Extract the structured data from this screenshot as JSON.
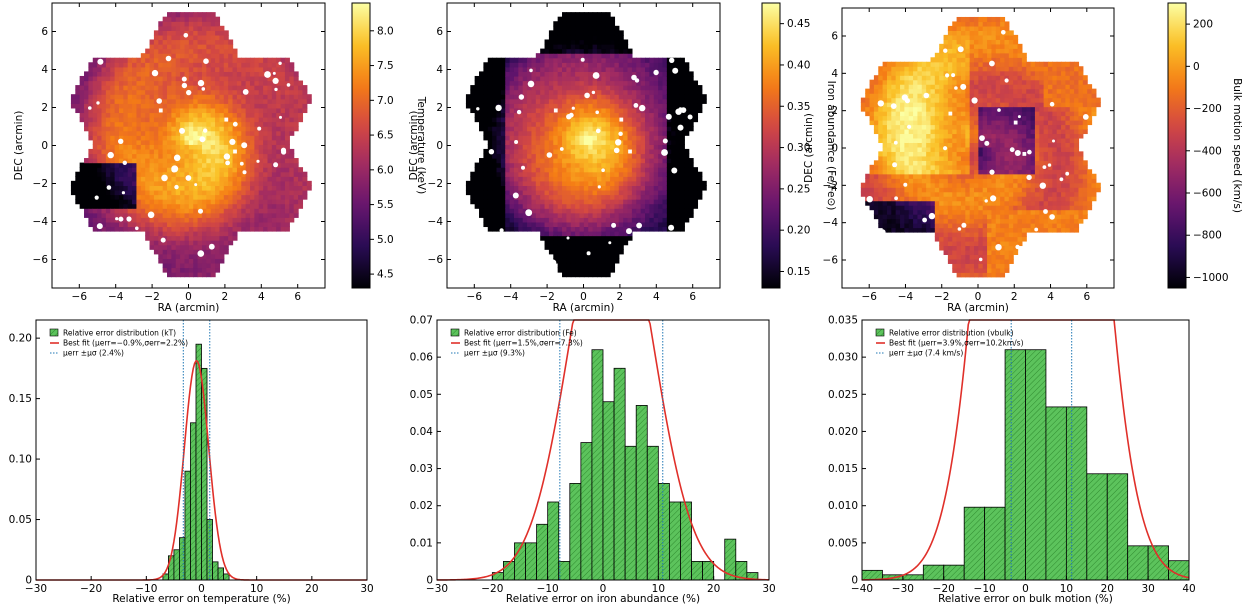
{
  "colors": {
    "hist_fill": "#5cc35c",
    "hist_hatch": "#2f8a2f",
    "fit_line": "#e0302a",
    "err_line": "#1f77b4",
    "map_bg": "#ffffff"
  },
  "chart_data": [
    {
      "id": "temp-map",
      "type": "heatmap",
      "xlabel": "RA (arcmin)",
      "ylabel": "DEC (arcmin)",
      "xticks": [
        -6,
        -4,
        -2,
        0,
        2,
        4,
        6
      ],
      "yticks": [
        -6,
        -4,
        -2,
        0,
        2,
        4,
        6
      ],
      "xlim": [
        -7.5,
        7.5
      ],
      "ylim": [
        -7.5,
        7.5
      ],
      "colorbar": {
        "label": "Temperature (keV)",
        "cmap": "inferno",
        "range": [
          4.3,
          8.4
        ],
        "ticks": [
          "4.5",
          "5.0",
          "5.5",
          "6.0",
          "6.5",
          "7.0",
          "7.5",
          "8.0"
        ],
        "tick_values": [
          4.5,
          5.0,
          5.5,
          6.0,
          6.5,
          7.0,
          7.5,
          8.0
        ]
      }
    },
    {
      "id": "fe-map",
      "type": "heatmap",
      "xlabel": "RA (arcmin)",
      "ylabel": "DEC (arcmin)",
      "xticks": [
        -6,
        -4,
        -2,
        0,
        2,
        4,
        6
      ],
      "yticks": [
        -6,
        -4,
        -2,
        0,
        2,
        4,
        6
      ],
      "xlim": [
        -7.5,
        7.5
      ],
      "ylim": [
        -7.5,
        7.5
      ],
      "colorbar": {
        "label": "Iron abundance (Fe/Fe⊙)",
        "cmap": "inferno",
        "range": [
          0.13,
          0.475
        ],
        "ticks": [
          "0.15",
          "0.20",
          "0.25",
          "0.30",
          "0.35",
          "0.40",
          "0.45"
        ],
        "tick_values": [
          0.15,
          0.2,
          0.25,
          0.3,
          0.35,
          0.4,
          0.45
        ]
      }
    },
    {
      "id": "vel-map",
      "type": "heatmap",
      "xlabel": "RA (arcmin)",
      "ylabel": "DEC (arcmin)",
      "xticks": [
        -6,
        -4,
        -2,
        0,
        2,
        4,
        6
      ],
      "yticks": [
        -6,
        -4,
        -2,
        0,
        2,
        4,
        6
      ],
      "xlim": [
        -7.5,
        7.5
      ],
      "ylim": [
        -7.5,
        7.5
      ],
      "colorbar": {
        "label": "Bulk motion speed (km/s)",
        "cmap": "inferno",
        "range": [
          -1050,
          300
        ],
        "ticks": [
          "−1000",
          "−800",
          "−600",
          "−400",
          "−200",
          "0",
          "200"
        ],
        "tick_values": [
          -1000,
          -800,
          -600,
          -400,
          -200,
          0,
          200
        ]
      }
    },
    {
      "id": "temp-hist",
      "type": "bar",
      "xlabel": "Relative error on temperature (%)",
      "ylabel": "",
      "xlim": [
        -30,
        30
      ],
      "ylim": [
        0,
        0.215
      ],
      "xticks": [
        -30,
        -20,
        -10,
        0,
        10,
        20,
        30
      ],
      "yticks": [
        0,
        0.05,
        0.1,
        0.15,
        0.2
      ],
      "ytick_labels": [
        "0",
        "0.05",
        "0.10",
        "0.15",
        "0.20"
      ],
      "bins": [
        {
          "x0": -7,
          "x1": -6,
          "y": 0.005
        },
        {
          "x0": -6,
          "x1": -5,
          "y": 0.02
        },
        {
          "x0": -5,
          "x1": -4,
          "y": 0.025
        },
        {
          "x0": -4,
          "x1": -3,
          "y": 0.035
        },
        {
          "x0": -3,
          "x1": -2,
          "y": 0.09
        },
        {
          "x0": -2,
          "x1": -1,
          "y": 0.13
        },
        {
          "x0": -1,
          "x1": 0,
          "y": 0.195
        },
        {
          "x0": 0,
          "x1": 1,
          "y": 0.175
        },
        {
          "x0": 1,
          "x1": 2,
          "y": 0.05
        },
        {
          "x0": 2,
          "x1": 3,
          "y": 0.015
        },
        {
          "x0": 3,
          "x1": 4,
          "y": 0.01
        },
        {
          "x0": 4,
          "x1": 5,
          "y": 0.005
        }
      ],
      "fit": {
        "mu": -0.9,
        "sigma": 2.2,
        "area": 1.0
      },
      "vlines": [
        -3.3,
        1.5
      ],
      "legend": {
        "hist": "Relative error distribution (kT)",
        "fit": "Best fit (μerr=−0.9%,σerr=2.2%)",
        "vline": "μerr ±μσ (2.4%)"
      }
    },
    {
      "id": "fe-hist",
      "type": "bar",
      "xlabel": "Relative error on iron abundance (%)",
      "ylabel": "",
      "xlim": [
        -30,
        30
      ],
      "ylim": [
        0,
        0.07
      ],
      "xticks": [
        -30,
        -20,
        -10,
        0,
        10,
        20,
        30
      ],
      "yticks": [
        0,
        0.01,
        0.02,
        0.03,
        0.04,
        0.05,
        0.06,
        0.07
      ],
      "ytick_labels": [
        "0",
        "0.01",
        "0.02",
        "0.03",
        "0.04",
        "0.05",
        "0.06",
        "0.07"
      ],
      "bins": [
        {
          "x0": -20,
          "x1": -18,
          "y": 0.002
        },
        {
          "x0": -18,
          "x1": -16,
          "y": 0.005
        },
        {
          "x0": -16,
          "x1": -14,
          "y": 0.01
        },
        {
          "x0": -14,
          "x1": -12,
          "y": 0.01
        },
        {
          "x0": -12,
          "x1": -10,
          "y": 0.015
        },
        {
          "x0": -10,
          "x1": -8,
          "y": 0.021
        },
        {
          "x0": -8,
          "x1": -6,
          "y": 0.005
        },
        {
          "x0": -6,
          "x1": -4,
          "y": 0.026
        },
        {
          "x0": -4,
          "x1": -2,
          "y": 0.037
        },
        {
          "x0": -2,
          "x1": 0,
          "y": 0.062
        },
        {
          "x0": 0,
          "x1": 2,
          "y": 0.048
        },
        {
          "x0": 2,
          "x1": 4,
          "y": 0.057
        },
        {
          "x0": 4,
          "x1": 6,
          "y": 0.036
        },
        {
          "x0": 6,
          "x1": 8,
          "y": 0.047
        },
        {
          "x0": 8,
          "x1": 10,
          "y": 0.036
        },
        {
          "x0": 10,
          "x1": 12,
          "y": 0.026
        },
        {
          "x0": 12,
          "x1": 14,
          "y": 0.021
        },
        {
          "x0": 14,
          "x1": 16,
          "y": 0.021
        },
        {
          "x0": 16,
          "x1": 18,
          "y": 0.005
        },
        {
          "x0": 18,
          "x1": 20,
          "y": 0.005
        },
        {
          "x0": 20,
          "x1": 22,
          "y": 0.0
        },
        {
          "x0": 22,
          "x1": 24,
          "y": 0.011
        },
        {
          "x0": 24,
          "x1": 26,
          "y": 0.005
        },
        {
          "x0": 26,
          "x1": 28,
          "y": 0.002
        }
      ],
      "fit": {
        "mu": 1.5,
        "sigma": 7.3,
        "area": 1.0
      },
      "vlines": [
        -7.8,
        10.8
      ],
      "legend": {
        "hist": "Relative error distribution (Fe)",
        "fit": "Best fit (μerr=1.5%,σerr=7.3%)",
        "vline": "μerr ±μσ (9.3%)"
      }
    },
    {
      "id": "vel-hist",
      "type": "bar",
      "xlabel": "Relative error on bulk motion (%)",
      "ylabel": "",
      "xlim": [
        -40,
        40
      ],
      "ylim": [
        0,
        0.035
      ],
      "xticks": [
        -40,
        -30,
        -20,
        -10,
        0,
        10,
        20,
        30,
        40
      ],
      "yticks": [
        0,
        0.005,
        0.01,
        0.015,
        0.02,
        0.025,
        0.03,
        0.035
      ],
      "ytick_labels": [
        "0",
        "0.005",
        "0.010",
        "0.015",
        "0.020",
        "0.025",
        "0.030",
        "0.035"
      ],
      "bins": [
        {
          "x0": -40,
          "x1": -35,
          "y": 0.0013
        },
        {
          "x0": -35,
          "x1": -30,
          "y": 0.0007
        },
        {
          "x0": -30,
          "x1": -25,
          "y": 0.0007
        },
        {
          "x0": -25,
          "x1": -20,
          "y": 0.002
        },
        {
          "x0": -20,
          "x1": -15,
          "y": 0.002
        },
        {
          "x0": -15,
          "x1": -10,
          "y": 0.0098
        },
        {
          "x0": -10,
          "x1": -5,
          "y": 0.0098
        },
        {
          "x0": -5,
          "x1": 0,
          "y": 0.031
        },
        {
          "x0": 0,
          "x1": 5,
          "y": 0.031
        },
        {
          "x0": 5,
          "x1": 10,
          "y": 0.0233
        },
        {
          "x0": 10,
          "x1": 15,
          "y": 0.0233
        },
        {
          "x0": 15,
          "x1": 20,
          "y": 0.0143
        },
        {
          "x0": 20,
          "x1": 25,
          "y": 0.0143
        },
        {
          "x0": 25,
          "x1": 30,
          "y": 0.0046
        },
        {
          "x0": 30,
          "x1": 35,
          "y": 0.0046
        },
        {
          "x0": 35,
          "x1": 40,
          "y": 0.0026
        }
      ],
      "fit": {
        "mu": 3.9,
        "sigma": 10.2,
        "area": 0.82
      },
      "vlines": [
        -3.5,
        11.3
      ],
      "legend": {
        "hist": "Relative error distribution (vbulk)",
        "fit": "Best fit (μerr=3.9%,σerr=10.2km/s)",
        "vline": "μerr ±μσ (7.4 km/s)"
      }
    }
  ]
}
